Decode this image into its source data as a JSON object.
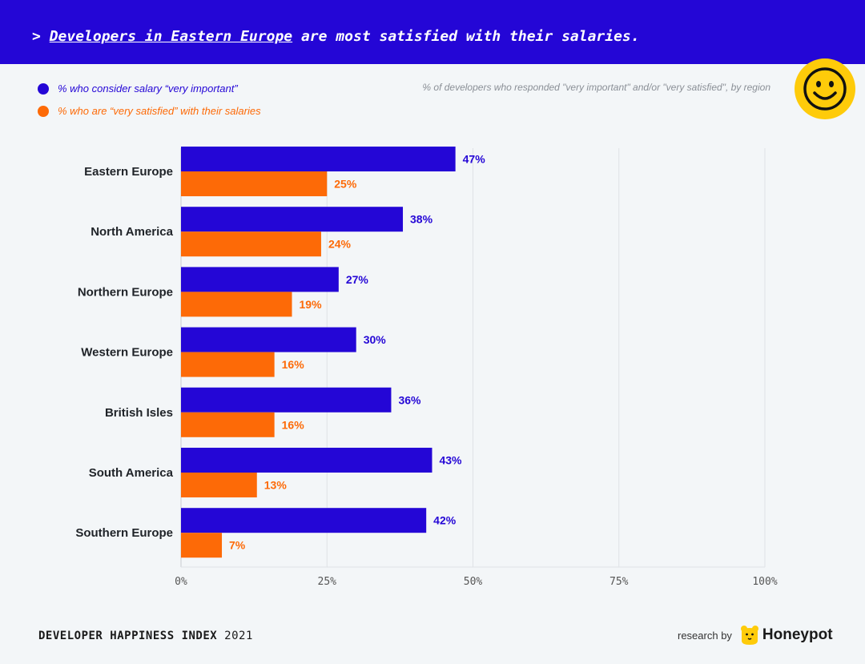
{
  "header": {
    "prefix": "> ",
    "highlight": "Developers in Eastern Europe",
    "rest": " are most satisfied with their salaries."
  },
  "legend": {
    "important_label": "% who consider salary “very important”",
    "satisfied_label": "% who are “very satisfied” with their salaries"
  },
  "subtitle": "% of developers who responded \"very important\" and/or \"very satisfied\", by region",
  "footer": {
    "index_label": "DEVELOPER HAPPINESS INDEX",
    "year": "2021",
    "research_by": "research by",
    "brand": "Honeypot"
  },
  "colors": {
    "blue": "#2406d6",
    "orange": "#fd6a07",
    "yellow": "#fecb0a"
  },
  "icons": {
    "smiley": "smiley-face-icon",
    "brand": "honeypot-bear-logo"
  },
  "chart_data": {
    "type": "bar",
    "orientation": "horizontal",
    "categories": [
      "Eastern Europe",
      "North America",
      "Northern Europe",
      "Western Europe",
      "British Isles",
      "South America",
      "Southern Europe"
    ],
    "series": [
      {
        "name": "% who consider salary “very important”",
        "values": [
          47,
          38,
          27,
          30,
          36,
          43,
          42
        ],
        "color": "#2406d6"
      },
      {
        "name": "% who are “very satisfied” with their salaries",
        "values": [
          25,
          24,
          19,
          16,
          16,
          13,
          7
        ],
        "color": "#fd6a07"
      }
    ],
    "xlim": [
      0,
      100
    ],
    "xticks": [
      0,
      25,
      50,
      75,
      100
    ],
    "tick_suffix": "%",
    "grid": true,
    "legend_position": "top-left"
  }
}
